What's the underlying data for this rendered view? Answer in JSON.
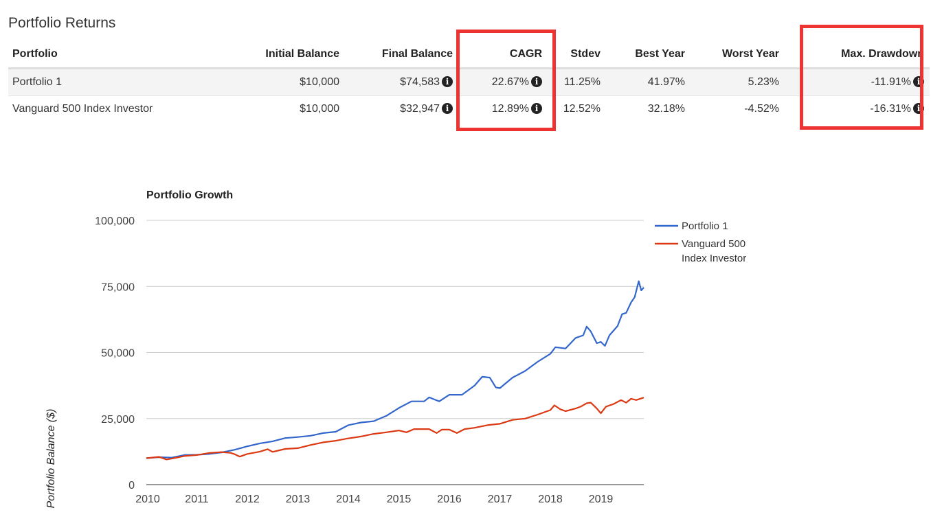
{
  "section_title": "Portfolio Returns",
  "table": {
    "headers": [
      "Portfolio",
      "Initial Balance",
      "Final Balance",
      "CAGR",
      "Stdev",
      "Best Year",
      "Worst Year",
      "Max. Drawdown"
    ],
    "rows": [
      {
        "portfolio": "Portfolio 1",
        "initial": "$10,000",
        "final": "$74,583",
        "cagr": "22.67%",
        "stdev": "11.25%",
        "best": "41.97%",
        "worst": "5.23%",
        "drawdown": "-11.91%"
      },
      {
        "portfolio": "Vanguard 500 Index Investor",
        "initial": "$10,000",
        "final": "$32,947",
        "cagr": "12.89%",
        "stdev": "12.52%",
        "best": "32.18%",
        "worst": "-4.52%",
        "drawdown": "-16.31%"
      }
    ],
    "info_glyph": "i"
  },
  "colors": {
    "highlight": "#ee3333",
    "series1": "#3366cc",
    "series2": "#dc3912"
  },
  "chart_data": {
    "type": "line",
    "title": "Portfolio Growth",
    "xlabel": "",
    "ylabel": "Portfolio Balance ($)",
    "xlim": [
      2010,
      2019.85
    ],
    "ylim": [
      0,
      100000
    ],
    "yticks": [
      0,
      25000,
      50000,
      75000,
      100000
    ],
    "ytick_labels": [
      "0",
      "25,000",
      "50,000",
      "75,000",
      "100,000"
    ],
    "xticks": [
      2010,
      2011,
      2012,
      2013,
      2014,
      2015,
      2016,
      2017,
      2018,
      2019
    ],
    "xtick_labels": [
      "2010",
      "2011",
      "2012",
      "2013",
      "2014",
      "2015",
      "2016",
      "2017",
      "2018",
      "2019"
    ],
    "grid": true,
    "legend_position": "right",
    "series": [
      {
        "name": "Portfolio 1",
        "points": [
          [
            2010.0,
            10000
          ],
          [
            2010.25,
            10400
          ],
          [
            2010.5,
            10200
          ],
          [
            2010.75,
            11200
          ],
          [
            2011.0,
            11300
          ],
          [
            2011.25,
            11600
          ],
          [
            2011.5,
            12200
          ],
          [
            2011.75,
            13200
          ],
          [
            2012.0,
            14500
          ],
          [
            2012.25,
            15600
          ],
          [
            2012.5,
            16400
          ],
          [
            2012.75,
            17600
          ],
          [
            2013.0,
            18000
          ],
          [
            2013.25,
            18500
          ],
          [
            2013.5,
            19500
          ],
          [
            2013.75,
            20000
          ],
          [
            2014.0,
            22500
          ],
          [
            2014.25,
            23500
          ],
          [
            2014.5,
            24000
          ],
          [
            2014.75,
            26000
          ],
          [
            2015.0,
            29000
          ],
          [
            2015.25,
            31500
          ],
          [
            2015.5,
            31500
          ],
          [
            2015.6,
            33000
          ],
          [
            2015.8,
            31500
          ],
          [
            2016.0,
            34000
          ],
          [
            2016.25,
            34000
          ],
          [
            2016.5,
            37500
          ],
          [
            2016.65,
            40800
          ],
          [
            2016.8,
            40500
          ],
          [
            2016.92,
            36800
          ],
          [
            2017.0,
            36500
          ],
          [
            2017.25,
            40500
          ],
          [
            2017.5,
            43000
          ],
          [
            2017.75,
            46500
          ],
          [
            2018.0,
            49500
          ],
          [
            2018.1,
            52000
          ],
          [
            2018.3,
            51500
          ],
          [
            2018.5,
            55500
          ],
          [
            2018.65,
            56500
          ],
          [
            2018.72,
            59800
          ],
          [
            2018.8,
            58000
          ],
          [
            2018.92,
            53500
          ],
          [
            2019.0,
            54000
          ],
          [
            2019.08,
            52500
          ],
          [
            2019.17,
            56500
          ],
          [
            2019.33,
            60000
          ],
          [
            2019.42,
            64500
          ],
          [
            2019.5,
            65000
          ],
          [
            2019.6,
            69000
          ],
          [
            2019.67,
            71000
          ],
          [
            2019.75,
            77000
          ],
          [
            2019.8,
            73500
          ],
          [
            2019.85,
            74583
          ]
        ]
      },
      {
        "name": "Vanguard 500\nIndex Investor",
        "points": [
          [
            2010.0,
            10000
          ],
          [
            2010.25,
            10500
          ],
          [
            2010.4,
            9500
          ],
          [
            2010.6,
            10200
          ],
          [
            2010.75,
            10800
          ],
          [
            2011.0,
            11200
          ],
          [
            2011.25,
            12000
          ],
          [
            2011.5,
            12300
          ],
          [
            2011.67,
            12000
          ],
          [
            2011.75,
            11500
          ],
          [
            2011.85,
            10600
          ],
          [
            2012.0,
            11600
          ],
          [
            2012.25,
            12500
          ],
          [
            2012.4,
            13400
          ],
          [
            2012.5,
            12400
          ],
          [
            2012.75,
            13500
          ],
          [
            2013.0,
            13800
          ],
          [
            2013.25,
            15000
          ],
          [
            2013.5,
            16000
          ],
          [
            2013.75,
            16600
          ],
          [
            2014.0,
            17500
          ],
          [
            2014.25,
            18200
          ],
          [
            2014.5,
            19200
          ],
          [
            2014.75,
            19800
          ],
          [
            2015.0,
            20500
          ],
          [
            2015.15,
            19800
          ],
          [
            2015.3,
            21000
          ],
          [
            2015.6,
            21000
          ],
          [
            2015.75,
            19500
          ],
          [
            2015.85,
            20800
          ],
          [
            2016.0,
            20800
          ],
          [
            2016.15,
            19500
          ],
          [
            2016.3,
            21000
          ],
          [
            2016.5,
            21500
          ],
          [
            2016.75,
            22500
          ],
          [
            2017.0,
            23000
          ],
          [
            2017.25,
            24500
          ],
          [
            2017.5,
            25000
          ],
          [
            2017.75,
            26500
          ],
          [
            2018.0,
            28200
          ],
          [
            2018.08,
            30000
          ],
          [
            2018.2,
            28500
          ],
          [
            2018.3,
            27800
          ],
          [
            2018.5,
            28800
          ],
          [
            2018.6,
            29500
          ],
          [
            2018.72,
            30800
          ],
          [
            2018.8,
            31000
          ],
          [
            2018.92,
            28800
          ],
          [
            2019.0,
            27000
          ],
          [
            2019.1,
            29500
          ],
          [
            2019.25,
            30500
          ],
          [
            2019.4,
            32000
          ],
          [
            2019.5,
            31000
          ],
          [
            2019.6,
            32500
          ],
          [
            2019.7,
            32000
          ],
          [
            2019.85,
            32947
          ]
        ]
      }
    ]
  }
}
